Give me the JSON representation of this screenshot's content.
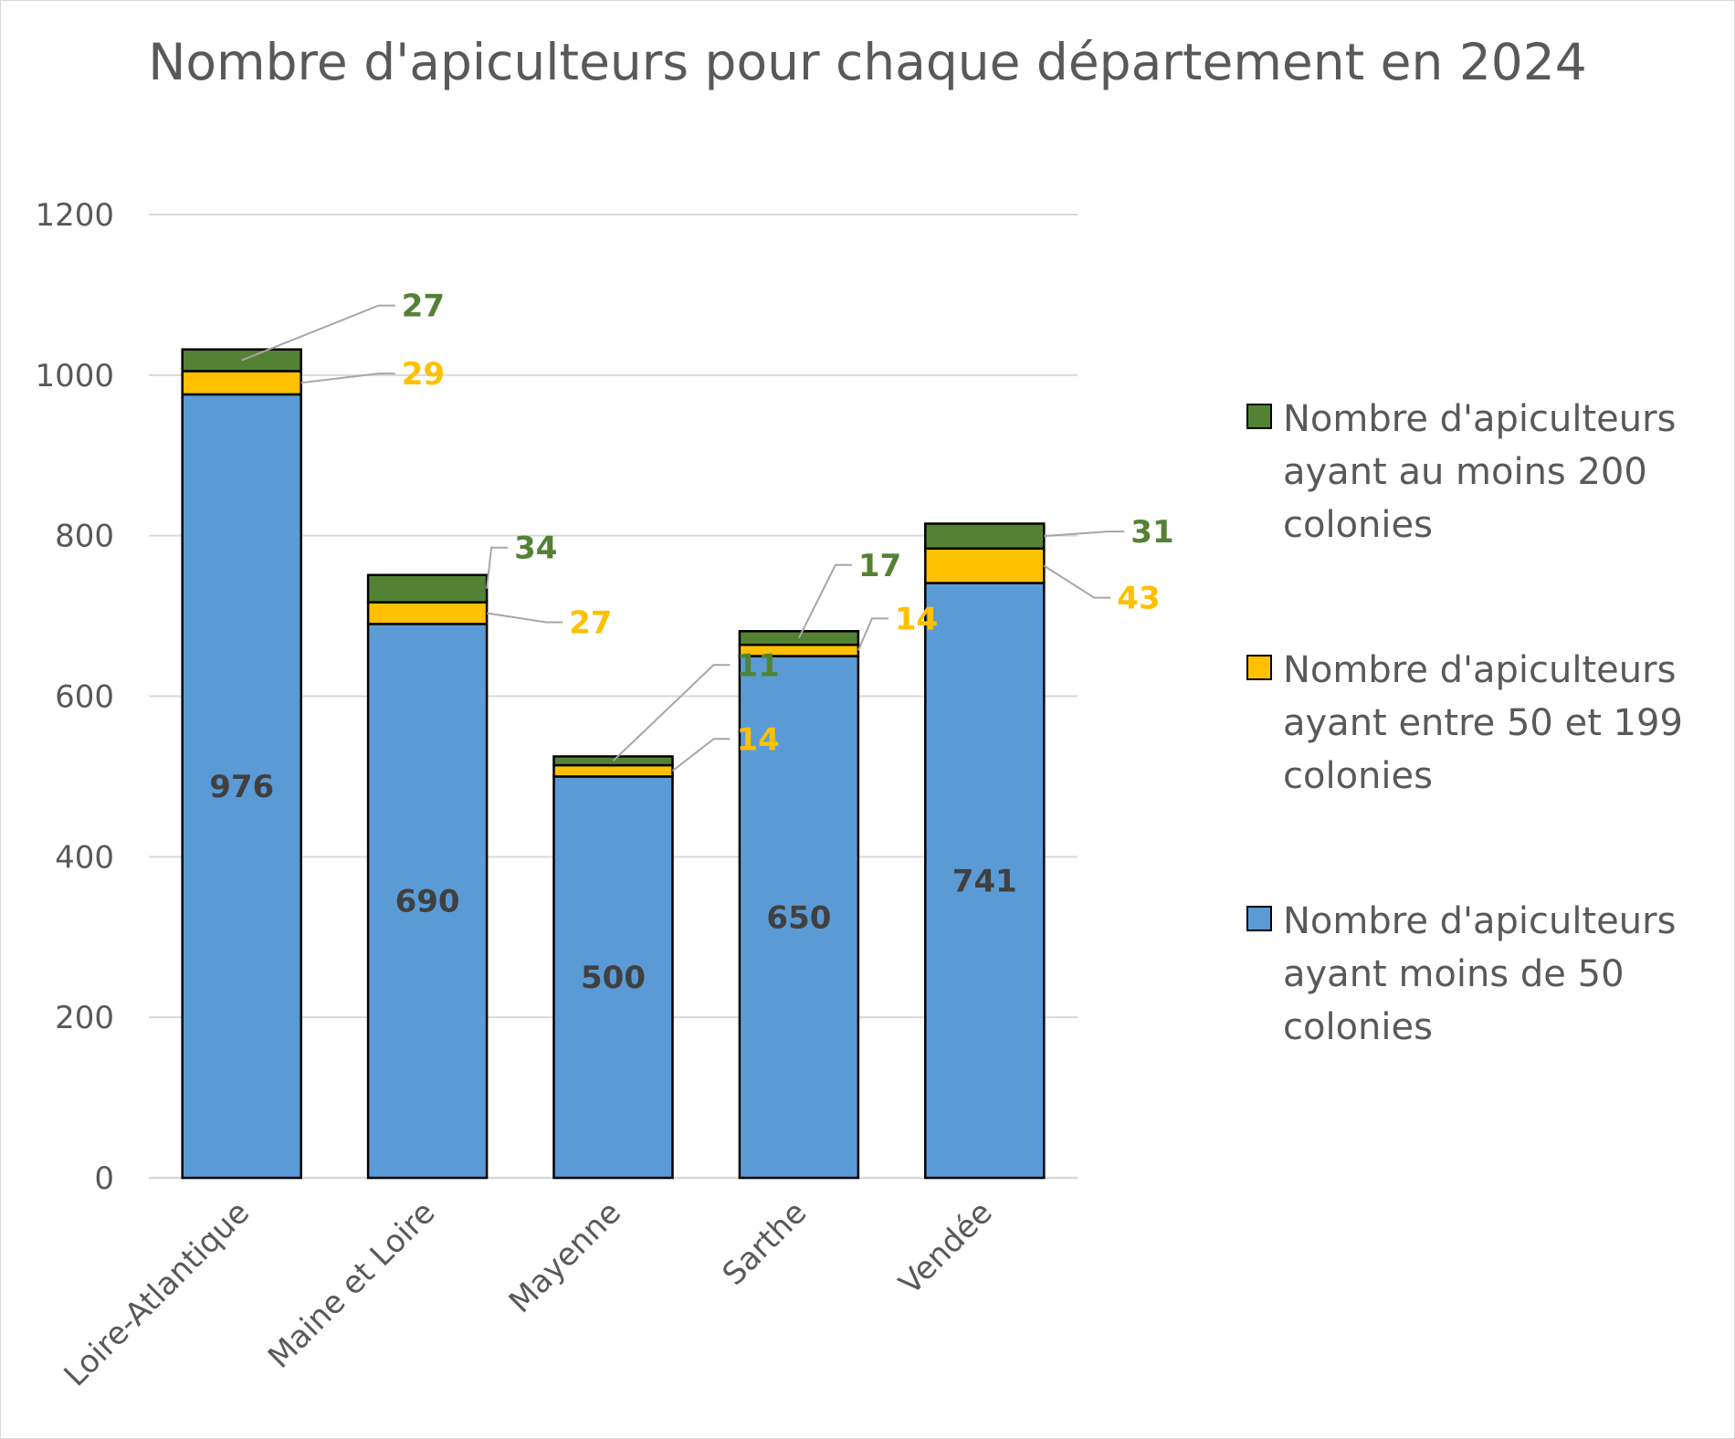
{
  "chart_data": {
    "type": "bar",
    "stacked": true,
    "title": "Nombre d'apiculteurs pour chaque département en 2024",
    "categories": [
      "Loire-Atlantique",
      "Maine et Loire",
      "Mayenne",
      "Sarthe",
      "Vendée"
    ],
    "series": [
      {
        "name": "Nombre d'apiculteurs ayant moins de 50 colonies",
        "color": "#5b9bd5",
        "label_color": "#404040",
        "values": [
          976,
          690,
          500,
          650,
          741
        ]
      },
      {
        "name": "Nombre d'apiculteurs ayant entre 50 et 199 colonies",
        "color": "#ffc000",
        "label_color": "#ffc000",
        "values": [
          29,
          27,
          14,
          14,
          43
        ]
      },
      {
        "name": "Nombre d'apiculteurs ayant au moins 200 colonies",
        "color": "#548235",
        "label_color": "#548235",
        "values": [
          27,
          34,
          11,
          17,
          31
        ]
      }
    ],
    "legend_order": [
      2,
      1,
      0
    ],
    "ylim": [
      0,
      1200
    ],
    "yticks": [
      0,
      200,
      400,
      600,
      800,
      1000,
      1200
    ],
    "grid": true,
    "legend": "right"
  }
}
